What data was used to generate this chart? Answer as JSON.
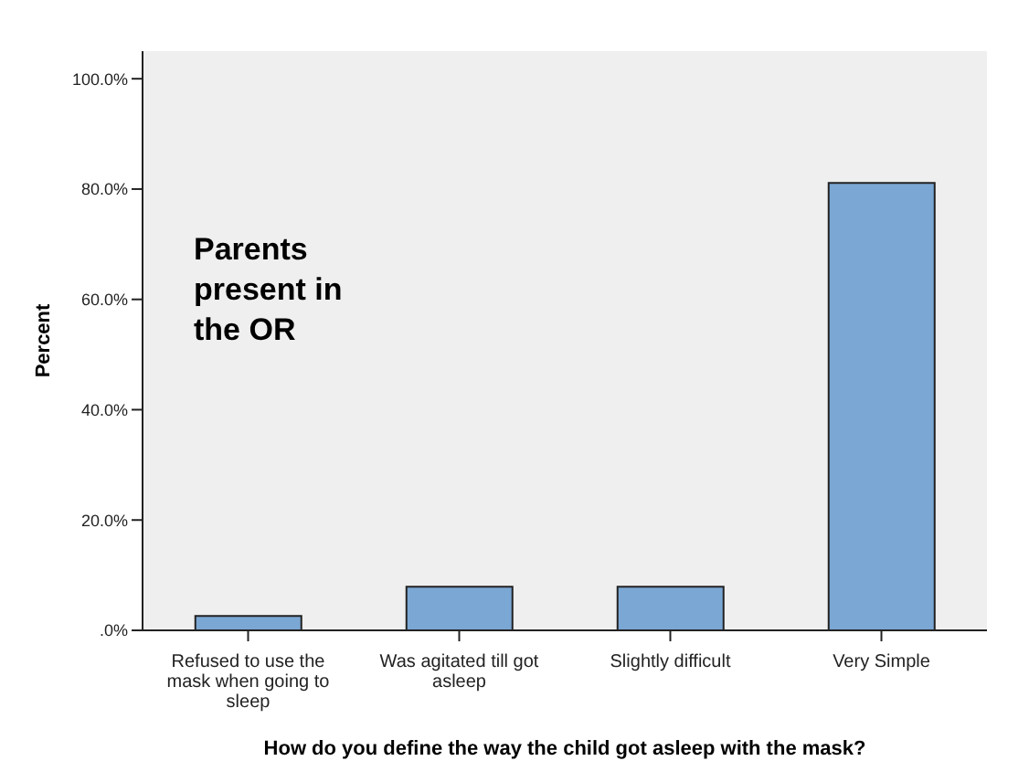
{
  "chart_data": {
    "type": "bar",
    "xlabel": "How do you define the way the child got asleep with the mask?",
    "ylabel": "Percent",
    "categories": [
      "Refused to use the mask when going to sleep",
      "Was agitated till got asleep",
      "Slightly difficult",
      "Very Simple"
    ],
    "values": [
      2.6,
      7.9,
      7.9,
      81.1
    ],
    "color": "#7ba7d4",
    "ylim": [
      0,
      105
    ],
    "yticks": [
      {
        "value": 0,
        "label": ".0%"
      },
      {
        "value": 20,
        "label": "20.0%"
      },
      {
        "value": 40,
        "label": "40.0%"
      },
      {
        "value": 60,
        "label": "60.0%"
      },
      {
        "value": 80,
        "label": "80.0%"
      },
      {
        "value": 100,
        "label": "100.0%"
      }
    ],
    "annotations": [
      "Parents present in the OR"
    ]
  }
}
